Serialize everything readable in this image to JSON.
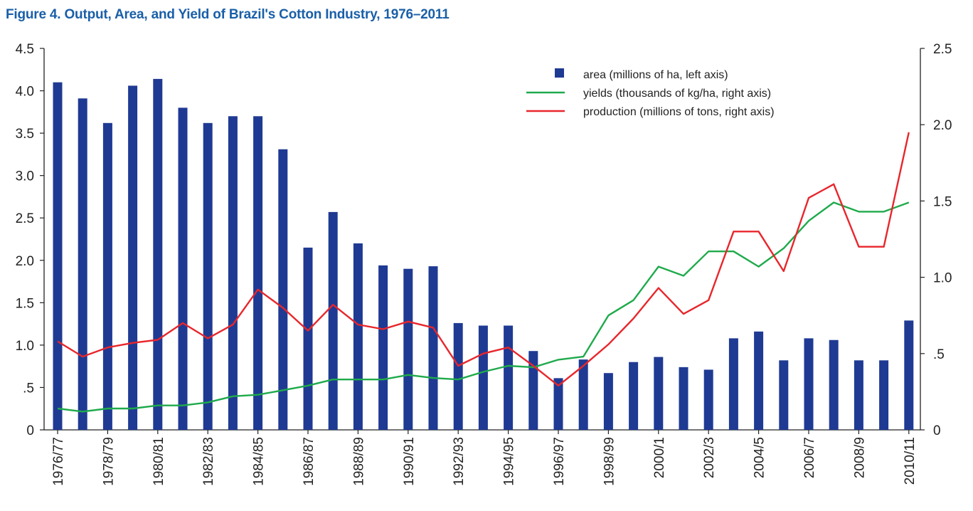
{
  "title": "Figure 4. Output, Area, and Yield of Brazil's Cotton Industry, 1976–2011",
  "colors": {
    "title": "#1a5fa8",
    "bars": "#1f3a93",
    "yields": "#1faa4b",
    "production": "#e8262b",
    "axis": "#222222"
  },
  "chart_data": {
    "type": "bar",
    "title": "Figure 4. Output, Area, and Yield of Brazil's Cotton Industry, 1976–2011",
    "categories": [
      "1976/77",
      "1977/78",
      "1978/79",
      "1979/80",
      "1980/81",
      "1981/82",
      "1982/83",
      "1983/84",
      "1984/85",
      "1985/86",
      "1986/87",
      "1987/88",
      "1988/89",
      "1989/90",
      "1990/91",
      "1991/92",
      "1992/93",
      "1993/94",
      "1994/95",
      "1995/96",
      "1996/97",
      "1997/98",
      "1998/99",
      "1999/00",
      "2000/1",
      "2001/2",
      "2002/3",
      "2003/4",
      "2004/5",
      "2005/6",
      "2006/7",
      "2007/8",
      "2008/9",
      "2009/10",
      "2010/11"
    ],
    "x_tick_labels": [
      "1976/77",
      "",
      "1978/79",
      "",
      "1980/81",
      "",
      "1982/83",
      "",
      "1984/85",
      "",
      "1986/87",
      "",
      "1988/89",
      "",
      "1990/91",
      "",
      "1992/93",
      "",
      "1994/95",
      "",
      "1996/97",
      "",
      "1998/99",
      "",
      "2000/1",
      "",
      "2002/3",
      "",
      "2004/5",
      "",
      "2006/7",
      "",
      "2008/9",
      "",
      "2010/11"
    ],
    "y_left": {
      "ylim": [
        0,
        4.5
      ],
      "ticks": [
        0,
        0.5,
        1.0,
        1.5,
        2.0,
        2.5,
        3.0,
        3.5,
        4.0,
        4.5
      ],
      "tick_labels": [
        "0",
        ".5",
        "1.0",
        "1.5",
        "2.0",
        "2.5",
        "3.0",
        "3.5",
        "4.0",
        "4.5"
      ]
    },
    "y_right": {
      "ylim": [
        0,
        2.5
      ],
      "ticks": [
        0,
        0.5,
        1.0,
        1.5,
        2.0,
        2.5
      ],
      "tick_labels": [
        "0",
        ".5",
        "1.0",
        "1.5",
        "2.0",
        "2.5"
      ]
    },
    "series": [
      {
        "name": "area (millions of ha, left axis)",
        "type": "bar",
        "axis": "left",
        "values": [
          4.1,
          3.91,
          3.62,
          4.06,
          4.14,
          3.8,
          3.62,
          3.7,
          3.7,
          3.31,
          2.15,
          2.57,
          2.2,
          1.94,
          1.9,
          1.93,
          1.26,
          1.23,
          1.23,
          0.93,
          0.61,
          0.83,
          0.67,
          0.8,
          0.86,
          0.74,
          0.71,
          1.08,
          1.16,
          0.82,
          1.08,
          1.06,
          0.82,
          0.82,
          1.29
        ]
      },
      {
        "name": "yields (thousands of kg/ha, right axis)",
        "type": "line",
        "axis": "right",
        "values": [
          0.14,
          0.12,
          0.14,
          0.14,
          0.16,
          0.16,
          0.18,
          0.22,
          0.23,
          0.26,
          0.29,
          0.33,
          0.33,
          0.33,
          0.36,
          0.34,
          0.33,
          0.38,
          0.42,
          0.41,
          0.46,
          0.48,
          0.75,
          0.85,
          1.07,
          1.01,
          1.17,
          1.17,
          1.07,
          1.19,
          1.37,
          1.49,
          1.43,
          1.43,
          1.49
        ]
      },
      {
        "name": "production (millions of tons, right axis)",
        "type": "line",
        "axis": "right",
        "values": [
          0.58,
          0.48,
          0.54,
          0.57,
          0.59,
          0.7,
          0.6,
          0.69,
          0.92,
          0.8,
          0.65,
          0.82,
          0.69,
          0.66,
          0.71,
          0.67,
          0.42,
          0.5,
          0.54,
          0.42,
          0.29,
          0.42,
          0.56,
          0.73,
          0.93,
          0.76,
          0.85,
          1.3,
          1.3,
          1.04,
          1.52,
          1.61,
          1.2,
          1.2,
          1.95
        ]
      }
    ],
    "legend": [
      {
        "label": "area (millions of ha, left axis)",
        "marker": "square",
        "color": "#1f3a93"
      },
      {
        "label": "yields (thousands of kg/ha, right axis)",
        "marker": "line",
        "color": "#1faa4b"
      },
      {
        "label": "production (millions of tons, right axis)",
        "marker": "line",
        "color": "#e8262b"
      }
    ],
    "legend_position": "top-right",
    "grid": false
  }
}
